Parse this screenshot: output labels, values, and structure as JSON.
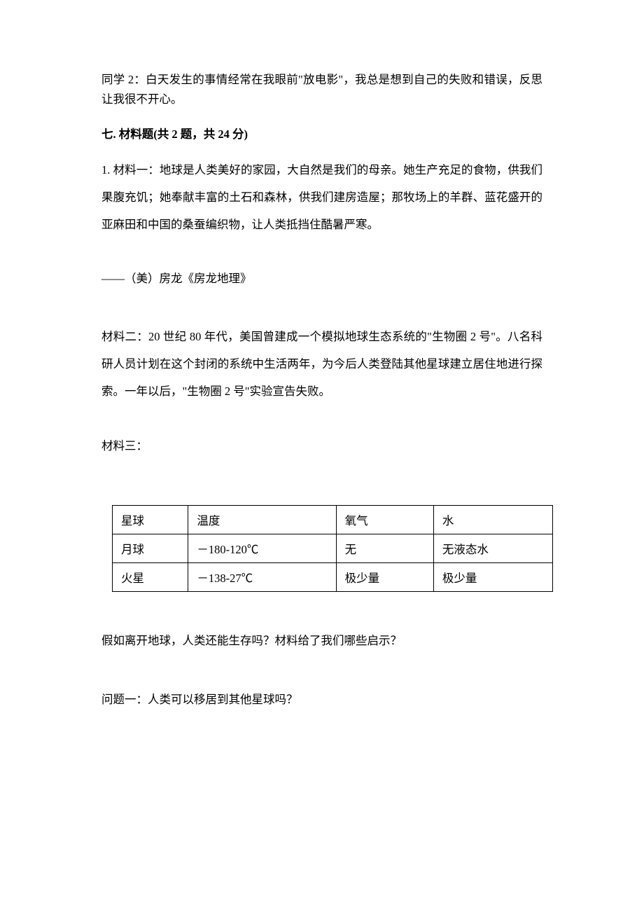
{
  "intro": "同学 2：白天发生的事情经常在我眼前\"放电影\"，我总是想到自己的失败和错误，反思让我很不开心。",
  "sectionHeader": "七. 材料题(共 2 题，共 24 分)",
  "material1": "1. 材料一：地球是人类美好的家园，大自然是我们的母亲。她生产充足的食物，供我们果腹充饥；她奉献丰富的土石和森林，供我们建房造屋；那牧场上的羊群、蓝花盛开的亚麻田和中国的桑蚕编织物，让人类抵挡住酷暑严寒。",
  "citation": "——（美）房龙《房龙地理》",
  "material2": "材料二：20 世纪 80 年代，美国曾建成一个模拟地球生态系统的\"生物圈 2 号\"。八名科研人员计划在这个封闭的系统中生活两年，为今后人类登陆其他星球建立居住地进行探索。一年以后，\"生物圈 2 号\"实验宣告失败。",
  "material3label": "材料三：",
  "table": {
    "columns": [
      "星球",
      "温度",
      "氧气",
      "水"
    ],
    "rows": [
      [
        "月球",
        "－180-120℃",
        "无",
        "无液态水"
      ],
      [
        "火星",
        "－138-27℃",
        "极少量",
        "极少量"
      ]
    ],
    "col_widths": [
      "25%",
      "25%",
      "25%",
      "25%"
    ],
    "border_color": "#000000",
    "background_color": "#ffffff"
  },
  "question_intro": "假如离开地球，人类还能生存吗？材料给了我们哪些启示？",
  "question1": "问题一：人类可以移居到其他星球吗？",
  "styling": {
    "body_width": 920,
    "body_height": 1302,
    "body_padding_top": 100,
    "body_padding_horizontal": 145,
    "font_family": "SimSun",
    "base_font_size": 16.5,
    "text_color": "#000000",
    "background_color": "#ffffff",
    "header_font_weight": "bold",
    "material_line_height": 2.35,
    "normal_line_height": 1.7,
    "table_border_width": 1.5
  }
}
